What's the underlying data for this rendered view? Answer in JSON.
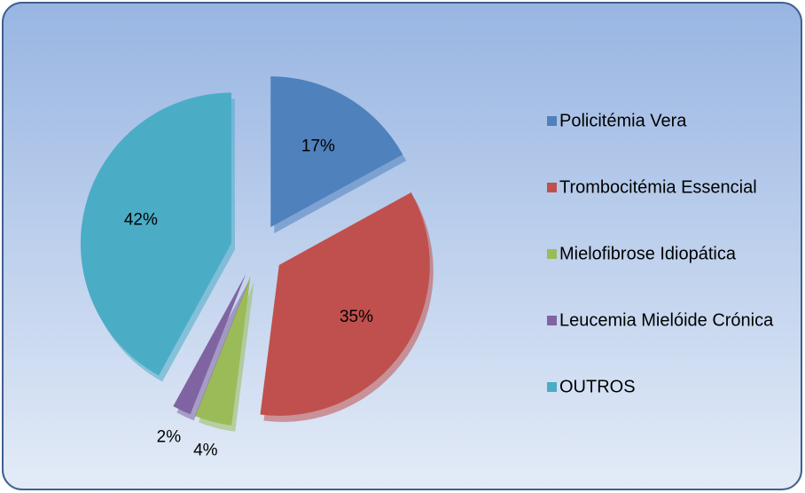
{
  "chart_data": {
    "type": "pie",
    "categories": [
      "Policitémia Vera",
      "Trombocitémia Essencial",
      "Mielofibrose Idiopática",
      "Leucemia Mielóide Crónica",
      "OUTROS"
    ],
    "values": [
      17,
      35,
      4,
      2,
      42
    ],
    "value_labels": [
      "17%",
      "35%",
      "4%",
      "2%",
      "42%"
    ],
    "colors": [
      "#4f81bd",
      "#c0504d",
      "#9bbb59",
      "#8064a2",
      "#4bacc6"
    ]
  }
}
